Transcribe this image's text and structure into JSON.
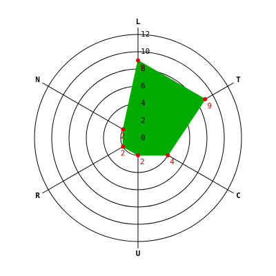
{
  "chart_data": {
    "type": "radar",
    "categories": [
      "L",
      "T",
      "C",
      "U",
      "R",
      "N"
    ],
    "values": [
      9,
      9,
      4,
      2,
      2,
      2
    ],
    "color": "#00aa00",
    "marker_color": "#dd0000",
    "label_color": "#cc0000",
    "ylim": [
      0,
      12
    ],
    "yticks": [
      0,
      2,
      4,
      6,
      8,
      10,
      12
    ]
  }
}
